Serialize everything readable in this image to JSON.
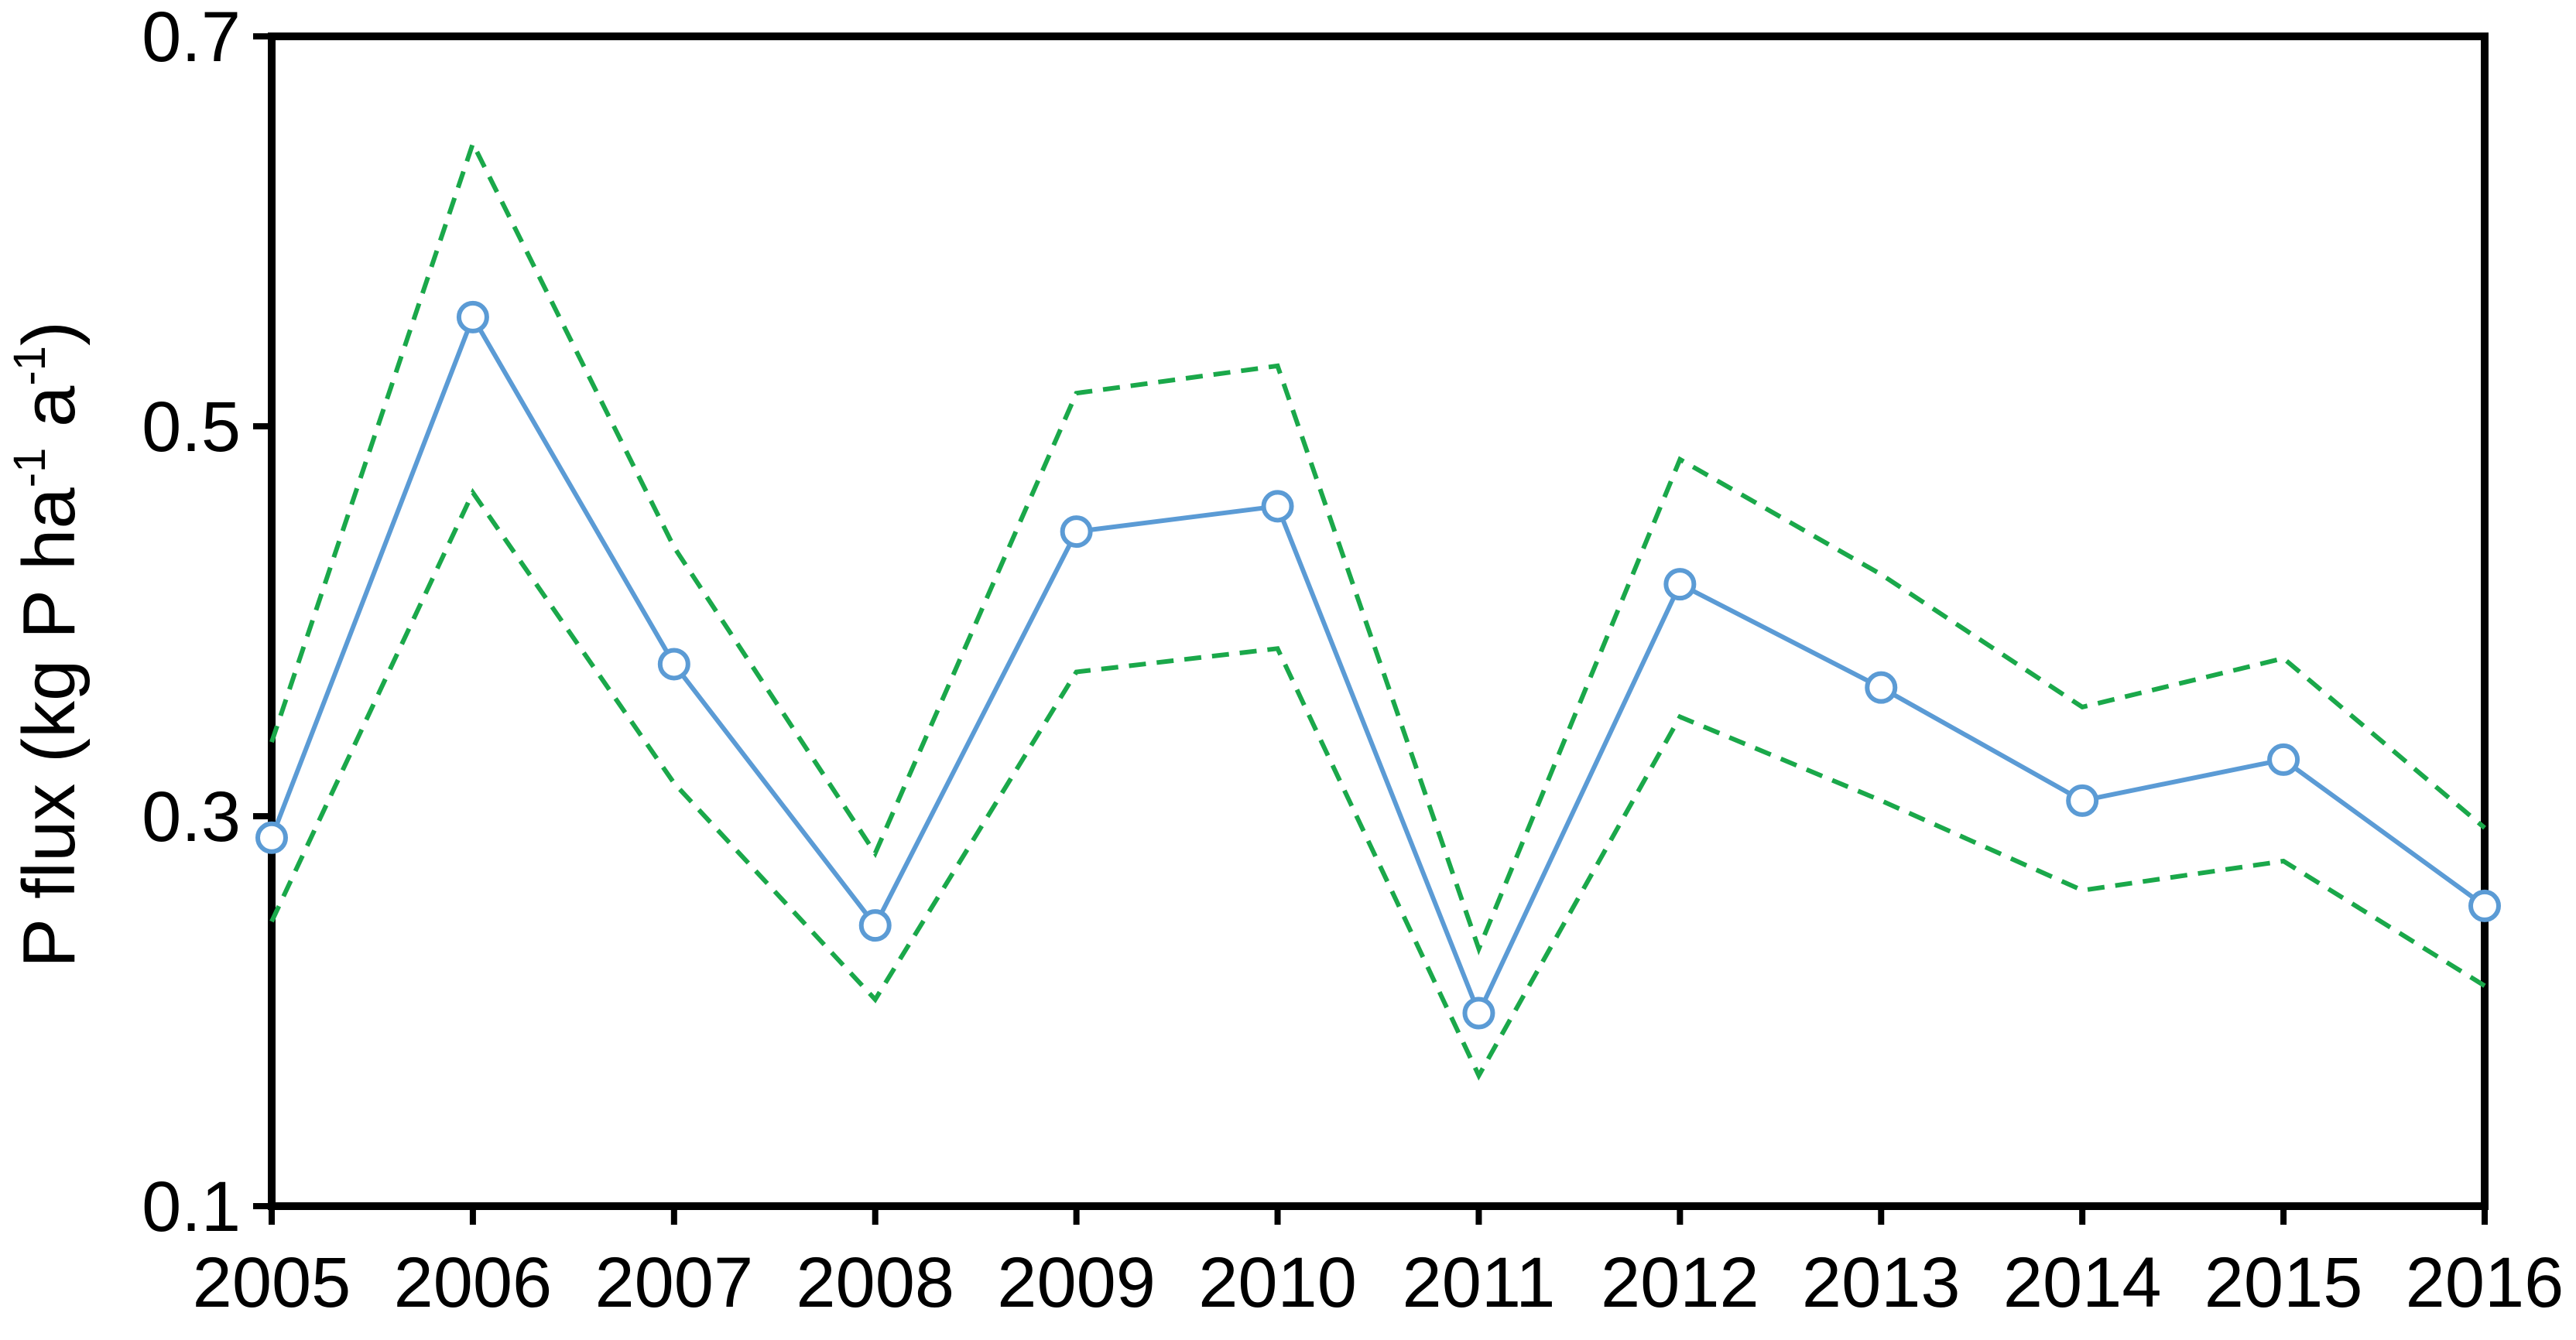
{
  "chart_data": {
    "type": "line",
    "ylabel": {
      "parts": [
        {
          "text": "P flux (kg P ha",
          "sup": false
        },
        {
          "text": "-1",
          "sup": true
        },
        {
          "text": " a",
          "sup": false
        },
        {
          "text": "-1",
          "sup": true
        },
        {
          "text": ")",
          "sup": false
        }
      ]
    },
    "xlabel": "",
    "x": [
      2005,
      2006,
      2007,
      2008,
      2009,
      2010,
      2011,
      2012,
      2013,
      2014,
      2015,
      2016
    ],
    "x_tick_labels": [
      "2005",
      "2006",
      "2007",
      "2008",
      "2009",
      "2010",
      "2011",
      "2012",
      "2013",
      "2014",
      "2015",
      "2016"
    ],
    "ylim": [
      0.1,
      0.7
    ],
    "y_ticks": [
      0.1,
      0.3,
      0.5,
      0.7
    ],
    "y_tick_labels": [
      "0.1",
      "0.3",
      "0.5",
      "0.7"
    ],
    "grid": false,
    "legend": "none",
    "series": [
      {
        "role": "estimate",
        "style": "solid-with-open-circles",
        "color": "#5b9bd5",
        "values": [
          0.289,
          0.556,
          0.378,
          0.244,
          0.446,
          0.459,
          0.199,
          0.419,
          0.366,
          0.308,
          0.329,
          0.254
        ]
      },
      {
        "role": "upper-bound",
        "style": "dashed",
        "color": "#1aa84a",
        "values": [
          0.338,
          0.645,
          0.438,
          0.281,
          0.517,
          0.531,
          0.232,
          0.483,
          0.424,
          0.356,
          0.381,
          0.294
        ]
      },
      {
        "role": "lower-bound",
        "style": "dashed",
        "color": "#1aa84a",
        "values": [
          0.246,
          0.466,
          0.317,
          0.206,
          0.374,
          0.386,
          0.167,
          0.351,
          0.308,
          0.262,
          0.277,
          0.213
        ]
      }
    ]
  }
}
